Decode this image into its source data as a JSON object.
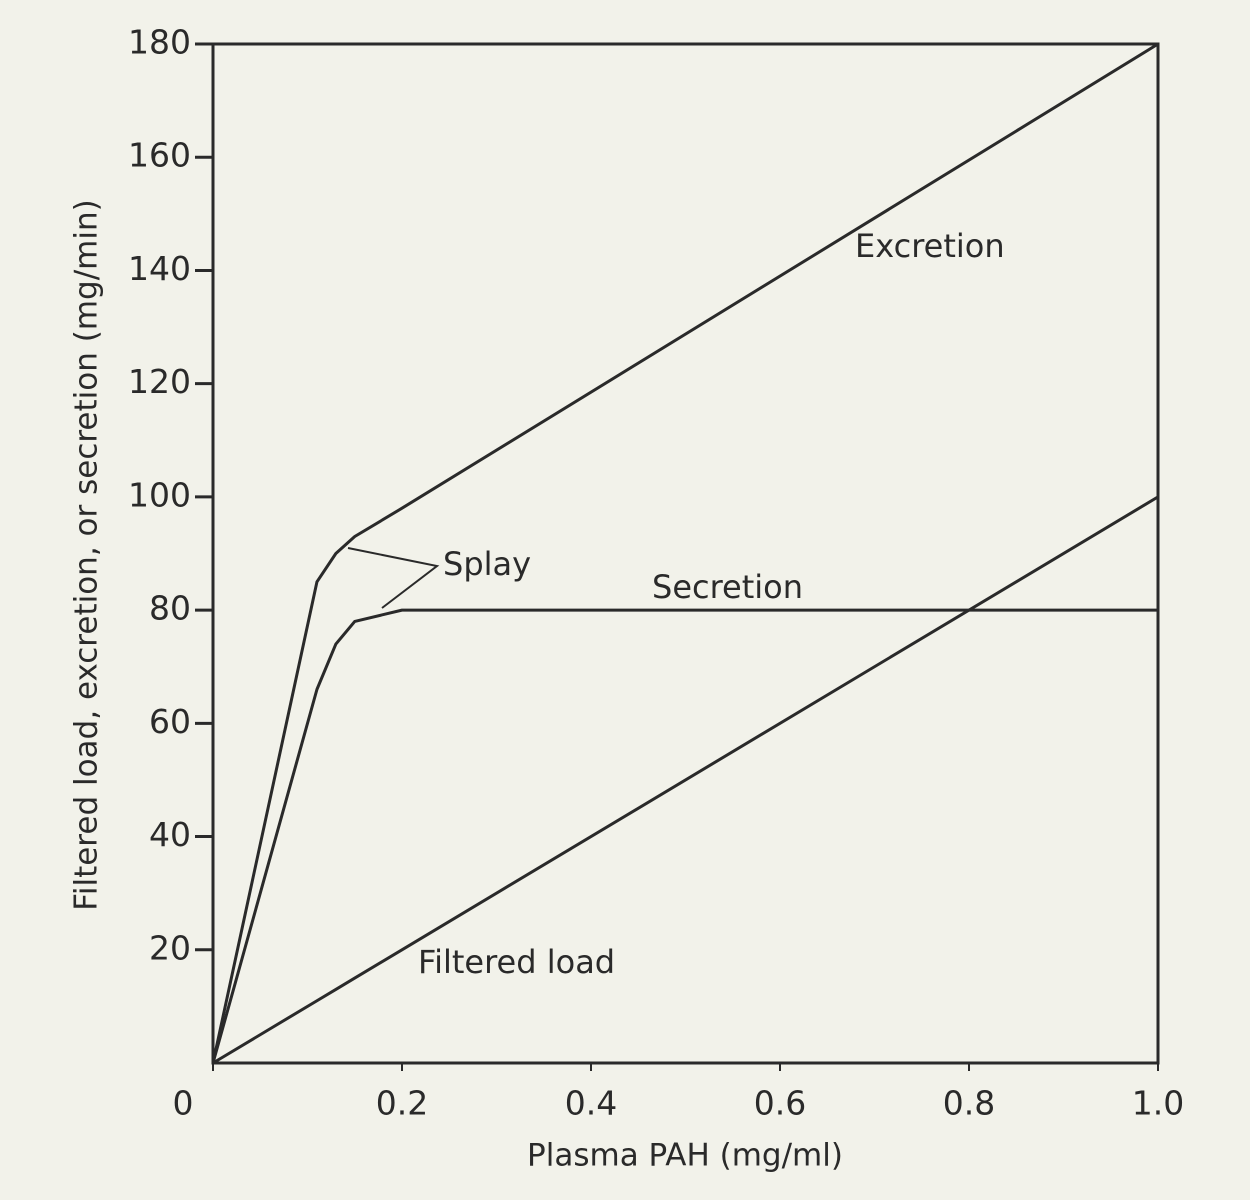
{
  "chart_data": {
    "type": "line",
    "x_label": "Plasma PAH (mg/ml)",
    "y_label": "Filtered load, excretion, or secretion (mg/min)",
    "x": [
      0,
      0.11,
      0.13,
      0.15,
      0.2,
      1.0
    ],
    "series": [
      {
        "name": "Excretion",
        "color": "#2a2a2a",
        "values": [
          0,
          85,
          90,
          93,
          98,
          180
        ]
      },
      {
        "name": "Secretion",
        "color": "#2a2a2a",
        "values": [
          0,
          66,
          74,
          78,
          80,
          80
        ]
      },
      {
        "name": "Filtered load",
        "color": "#2a2a2a",
        "values": [
          0,
          11,
          13,
          15,
          20,
          100
        ]
      }
    ],
    "annotations": [
      "Excretion",
      "Secretion",
      "Filtered load",
      "Splay"
    ],
    "xlim": [
      0,
      1
    ],
    "ylim": [
      0,
      180
    ],
    "xticks": [
      0,
      0.2,
      0.4,
      0.6,
      0.8,
      {
        "value": 1,
        "label": "1.0"
      }
    ],
    "yticks": [
      20,
      40,
      60,
      80,
      100,
      120,
      140,
      160,
      180
    ]
  }
}
